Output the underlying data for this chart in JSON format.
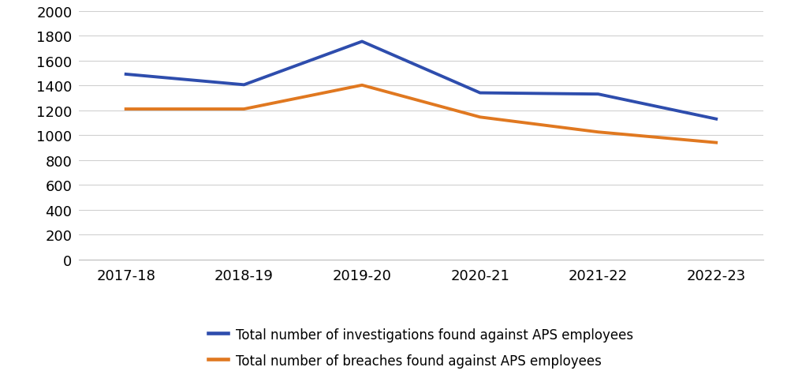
{
  "categories": [
    "2017-18",
    "2018-19",
    "2019-20",
    "2020-21",
    "2021-22",
    "2022-23"
  ],
  "investigations": [
    1490,
    1405,
    1753,
    1340,
    1330,
    1130
  ],
  "breaches": [
    1210,
    1210,
    1402,
    1145,
    1025,
    940
  ],
  "investigations_color": "#2E4DAD",
  "breaches_color": "#E07820",
  "line_width": 2.8,
  "ylim": [
    0,
    2000
  ],
  "yticks": [
    0,
    200,
    400,
    600,
    800,
    1000,
    1200,
    1400,
    1600,
    1800,
    2000
  ],
  "legend_investigations": "Total number of investigations found against APS employees",
  "legend_breaches": "Total number of breaches found against APS employees",
  "background_color": "#ffffff",
  "grid_color": "#d0d0d0",
  "tick_fontsize": 13,
  "legend_fontsize": 12
}
